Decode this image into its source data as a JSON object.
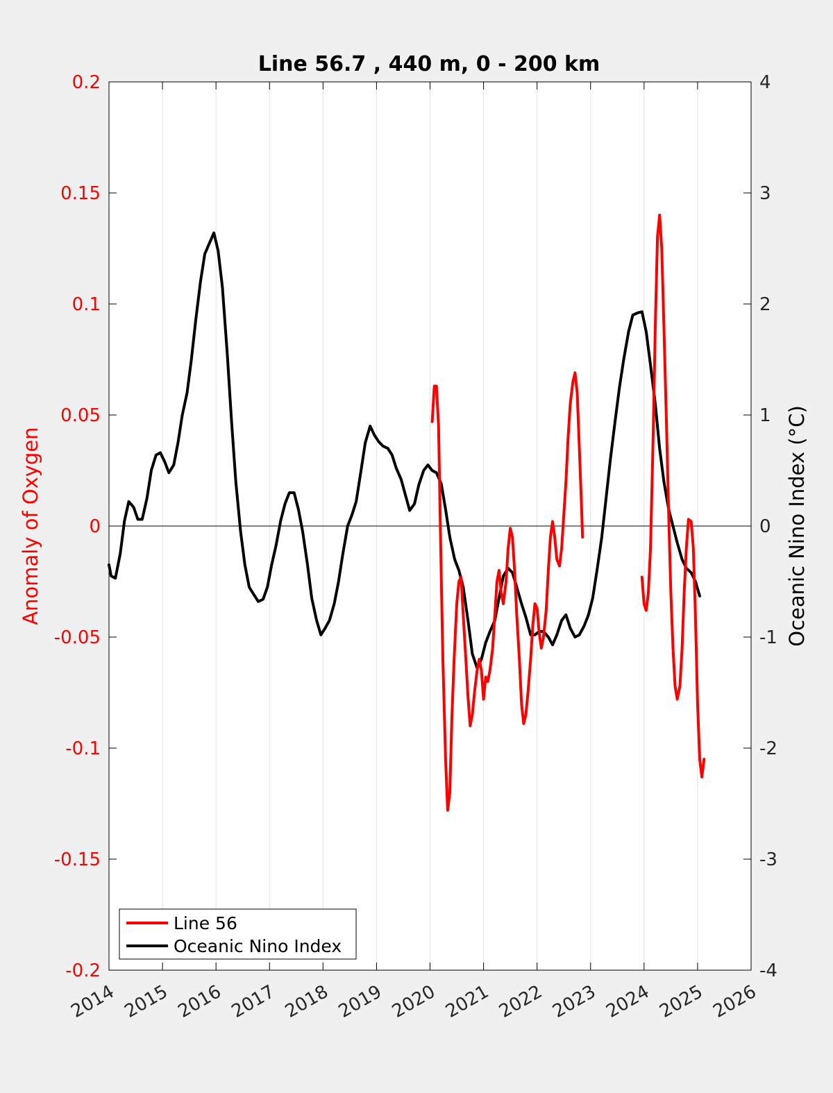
{
  "chart_data": {
    "type": "line",
    "title": "Line 56.7 , 440 m, 0 - 200 km",
    "xlabel": "",
    "ylabel_left": "Anomaly of Oxygen",
    "ylabel_right": "Oceanic Nino Index (°C)",
    "xlim": [
      2014,
      2026
    ],
    "ylim_left": [
      -0.2,
      0.2
    ],
    "ylim_right": [
      -4,
      4
    ],
    "x_ticks": [
      "2014",
      "2015",
      "2016",
      "2017",
      "2018",
      "2019",
      "2020",
      "2021",
      "2022",
      "2023",
      "2024",
      "2025",
      "2026"
    ],
    "y_left_ticks": [
      "0.2",
      "0.15",
      "0.1",
      "0.05",
      "0",
      "-0.05",
      "-0.1",
      "-0.15",
      "-0.2"
    ],
    "y_right_ticks": [
      "4",
      "3",
      "2",
      "1",
      "0",
      "-1",
      "-2",
      "-3",
      "-4"
    ],
    "grid": "vertical",
    "zero_line": true,
    "legend_position": "bottom-left",
    "colors": {
      "line56": "#ff0000",
      "oni": "#000000",
      "left_axis": "#ff0000"
    },
    "series": [
      {
        "name": "Line 56",
        "axis": "left",
        "segments": [
          [
            [
              2020.04,
              0.047
            ],
            [
              2020.08,
              0.063
            ],
            [
              2020.12,
              0.063
            ],
            [
              2020.16,
              0.045
            ],
            [
              2020.2,
              -0.01
            ],
            [
              2020.24,
              -0.06
            ],
            [
              2020.29,
              -0.105
            ],
            [
              2020.33,
              -0.128
            ],
            [
              2020.37,
              -0.12
            ],
            [
              2020.41,
              -0.085
            ],
            [
              2020.45,
              -0.06
            ],
            [
              2020.5,
              -0.035
            ],
            [
              2020.54,
              -0.025
            ],
            [
              2020.58,
              -0.023
            ],
            [
              2020.62,
              -0.04
            ],
            [
              2020.67,
              -0.06
            ],
            [
              2020.71,
              -0.077
            ],
            [
              2020.75,
              -0.09
            ],
            [
              2020.79,
              -0.085
            ],
            [
              2020.83,
              -0.075
            ],
            [
              2020.88,
              -0.065
            ],
            [
              2020.92,
              -0.06
            ],
            [
              2020.96,
              -0.065
            ],
            [
              2021.0,
              -0.078
            ],
            [
              2021.04,
              -0.068
            ],
            [
              2021.08,
              -0.07
            ],
            [
              2021.12,
              -0.065
            ],
            [
              2021.17,
              -0.055
            ],
            [
              2021.21,
              -0.04
            ],
            [
              2021.25,
              -0.025
            ],
            [
              2021.29,
              -0.02
            ],
            [
              2021.33,
              -0.03
            ],
            [
              2021.37,
              -0.035
            ],
            [
              2021.42,
              -0.025
            ],
            [
              2021.46,
              -0.01
            ],
            [
              2021.5,
              -0.001
            ],
            [
              2021.54,
              -0.005
            ],
            [
              2021.58,
              -0.02
            ],
            [
              2021.62,
              -0.04
            ],
            [
              2021.67,
              -0.06
            ],
            [
              2021.71,
              -0.08
            ],
            [
              2021.75,
              -0.089
            ],
            [
              2021.79,
              -0.085
            ],
            [
              2021.83,
              -0.075
            ],
            [
              2021.88,
              -0.06
            ],
            [
              2021.92,
              -0.045
            ],
            [
              2021.96,
              -0.035
            ],
            [
              2022.0,
              -0.037
            ],
            [
              2022.04,
              -0.048
            ],
            [
              2022.08,
              -0.055
            ],
            [
              2022.12,
              -0.05
            ],
            [
              2022.17,
              -0.038
            ],
            [
              2022.21,
              -0.02
            ],
            [
              2022.25,
              -0.005
            ],
            [
              2022.29,
              0.002
            ],
            [
              2022.33,
              -0.005
            ],
            [
              2022.37,
              -0.015
            ],
            [
              2022.42,
              -0.018
            ],
            [
              2022.46,
              -0.01
            ],
            [
              2022.5,
              0.005
            ],
            [
              2022.54,
              0.02
            ],
            [
              2022.58,
              0.04
            ],
            [
              2022.62,
              0.055
            ],
            [
              2022.67,
              0.065
            ],
            [
              2022.71,
              0.069
            ],
            [
              2022.75,
              0.06
            ],
            [
              2022.79,
              0.035
            ],
            [
              2022.83,
              0.01
            ],
            [
              2022.85,
              -0.005
            ]
          ],
          [
            [
              2023.96,
              -0.023
            ],
            [
              2024.0,
              -0.035
            ],
            [
              2024.04,
              -0.038
            ],
            [
              2024.08,
              -0.03
            ],
            [
              2024.12,
              -0.01
            ],
            [
              2024.17,
              0.04
            ],
            [
              2024.21,
              0.09
            ],
            [
              2024.25,
              0.13
            ],
            [
              2024.29,
              0.14
            ],
            [
              2024.33,
              0.125
            ],
            [
              2024.37,
              0.09
            ],
            [
              2024.42,
              0.045
            ],
            [
              2024.46,
              0.005
            ],
            [
              2024.5,
              -0.03
            ],
            [
              2024.54,
              -0.055
            ],
            [
              2024.58,
              -0.072
            ],
            [
              2024.62,
              -0.078
            ],
            [
              2024.67,
              -0.072
            ],
            [
              2024.71,
              -0.055
            ],
            [
              2024.75,
              -0.03
            ],
            [
              2024.79,
              -0.01
            ],
            [
              2024.83,
              0.003
            ],
            [
              2024.88,
              0.002
            ],
            [
              2024.92,
              -0.01
            ],
            [
              2024.96,
              -0.04
            ],
            [
              2025.0,
              -0.08
            ],
            [
              2025.04,
              -0.105
            ],
            [
              2025.08,
              -0.113
            ],
            [
              2025.12,
              -0.105
            ]
          ]
        ]
      },
      {
        "name": "Oceanic Nino Index",
        "axis": "right",
        "segments": [
          [
            [
              2014.0,
              -0.35
            ],
            [
              2014.04,
              -0.45
            ],
            [
              2014.12,
              -0.47
            ],
            [
              2014.21,
              -0.25
            ],
            [
              2014.29,
              0.05
            ],
            [
              2014.37,
              0.22
            ],
            [
              2014.46,
              0.17
            ],
            [
              2014.54,
              0.06
            ],
            [
              2014.62,
              0.06
            ],
            [
              2014.71,
              0.25
            ],
            [
              2014.79,
              0.5
            ],
            [
              2014.88,
              0.64
            ],
            [
              2014.96,
              0.66
            ],
            [
              2015.04,
              0.58
            ],
            [
              2015.12,
              0.48
            ],
            [
              2015.21,
              0.55
            ],
            [
              2015.29,
              0.75
            ],
            [
              2015.37,
              1.0
            ],
            [
              2015.46,
              1.2
            ],
            [
              2015.54,
              1.5
            ],
            [
              2015.62,
              1.85
            ],
            [
              2015.71,
              2.2
            ],
            [
              2015.79,
              2.45
            ],
            [
              2015.88,
              2.55
            ],
            [
              2015.96,
              2.64
            ],
            [
              2016.04,
              2.48
            ],
            [
              2016.12,
              2.15
            ],
            [
              2016.21,
              1.55
            ],
            [
              2016.29,
              0.95
            ],
            [
              2016.37,
              0.4
            ],
            [
              2016.46,
              -0.05
            ],
            [
              2016.54,
              -0.35
            ],
            [
              2016.62,
              -0.55
            ],
            [
              2016.71,
              -0.62
            ],
            [
              2016.79,
              -0.68
            ],
            [
              2016.88,
              -0.66
            ],
            [
              2016.96,
              -0.55
            ],
            [
              2017.04,
              -0.35
            ],
            [
              2017.12,
              -0.18
            ],
            [
              2017.21,
              0.05
            ],
            [
              2017.29,
              0.2
            ],
            [
              2017.37,
              0.3
            ],
            [
              2017.46,
              0.3
            ],
            [
              2017.54,
              0.15
            ],
            [
              2017.62,
              -0.05
            ],
            [
              2017.71,
              -0.35
            ],
            [
              2017.79,
              -0.65
            ],
            [
              2017.88,
              -0.85
            ],
            [
              2017.96,
              -0.98
            ],
            [
              2018.04,
              -0.92
            ],
            [
              2018.12,
              -0.85
            ],
            [
              2018.21,
              -0.7
            ],
            [
              2018.29,
              -0.5
            ],
            [
              2018.37,
              -0.25
            ],
            [
              2018.46,
              0.0
            ],
            [
              2018.54,
              0.1
            ],
            [
              2018.62,
              0.22
            ],
            [
              2018.71,
              0.5
            ],
            [
              2018.79,
              0.75
            ],
            [
              2018.88,
              0.9
            ],
            [
              2018.96,
              0.82
            ],
            [
              2019.04,
              0.76
            ],
            [
              2019.12,
              0.72
            ],
            [
              2019.21,
              0.7
            ],
            [
              2019.29,
              0.64
            ],
            [
              2019.37,
              0.52
            ],
            [
              2019.46,
              0.42
            ],
            [
              2019.54,
              0.28
            ],
            [
              2019.62,
              0.14
            ],
            [
              2019.71,
              0.2
            ],
            [
              2019.79,
              0.37
            ],
            [
              2019.88,
              0.5
            ],
            [
              2019.96,
              0.55
            ],
            [
              2020.04,
              0.5
            ],
            [
              2020.12,
              0.48
            ],
            [
              2020.21,
              0.38
            ],
            [
              2020.29,
              0.15
            ],
            [
              2020.37,
              -0.1
            ],
            [
              2020.46,
              -0.3
            ],
            [
              2020.54,
              -0.4
            ],
            [
              2020.62,
              -0.55
            ],
            [
              2020.71,
              -0.85
            ],
            [
              2020.79,
              -1.15
            ],
            [
              2020.88,
              -1.28
            ],
            [
              2020.96,
              -1.2
            ],
            [
              2021.04,
              -1.05
            ],
            [
              2021.12,
              -0.95
            ],
            [
              2021.21,
              -0.85
            ],
            [
              2021.29,
              -0.65
            ],
            [
              2021.37,
              -0.45
            ],
            [
              2021.46,
              -0.38
            ],
            [
              2021.54,
              -0.42
            ],
            [
              2021.62,
              -0.55
            ],
            [
              2021.71,
              -0.7
            ],
            [
              2021.79,
              -0.82
            ],
            [
              2021.88,
              -0.98
            ],
            [
              2021.96,
              -0.98
            ],
            [
              2022.04,
              -0.95
            ],
            [
              2022.12,
              -0.95
            ],
            [
              2022.21,
              -1.0
            ],
            [
              2022.29,
              -1.07
            ],
            [
              2022.37,
              -0.98
            ],
            [
              2022.46,
              -0.85
            ],
            [
              2022.54,
              -0.8
            ],
            [
              2022.62,
              -0.92
            ],
            [
              2022.71,
              -1.0
            ],
            [
              2022.79,
              -0.98
            ],
            [
              2022.88,
              -0.9
            ],
            [
              2022.96,
              -0.8
            ],
            [
              2023.04,
              -0.65
            ],
            [
              2023.12,
              -0.4
            ],
            [
              2023.21,
              -0.1
            ],
            [
              2023.29,
              0.25
            ],
            [
              2023.37,
              0.6
            ],
            [
              2023.46,
              0.95
            ],
            [
              2023.54,
              1.25
            ],
            [
              2023.62,
              1.5
            ],
            [
              2023.71,
              1.75
            ],
            [
              2023.79,
              1.9
            ],
            [
              2023.88,
              1.92
            ],
            [
              2023.96,
              1.93
            ],
            [
              2024.04,
              1.75
            ],
            [
              2024.12,
              1.45
            ],
            [
              2024.21,
              1.1
            ],
            [
              2024.29,
              0.7
            ],
            [
              2024.37,
              0.4
            ],
            [
              2024.46,
              0.15
            ],
            [
              2024.54,
              0.0
            ],
            [
              2024.62,
              -0.15
            ],
            [
              2024.71,
              -0.3
            ],
            [
              2024.79,
              -0.38
            ],
            [
              2024.88,
              -0.42
            ],
            [
              2024.96,
              -0.5
            ],
            [
              2025.04,
              -0.63
            ]
          ]
        ]
      }
    ]
  }
}
